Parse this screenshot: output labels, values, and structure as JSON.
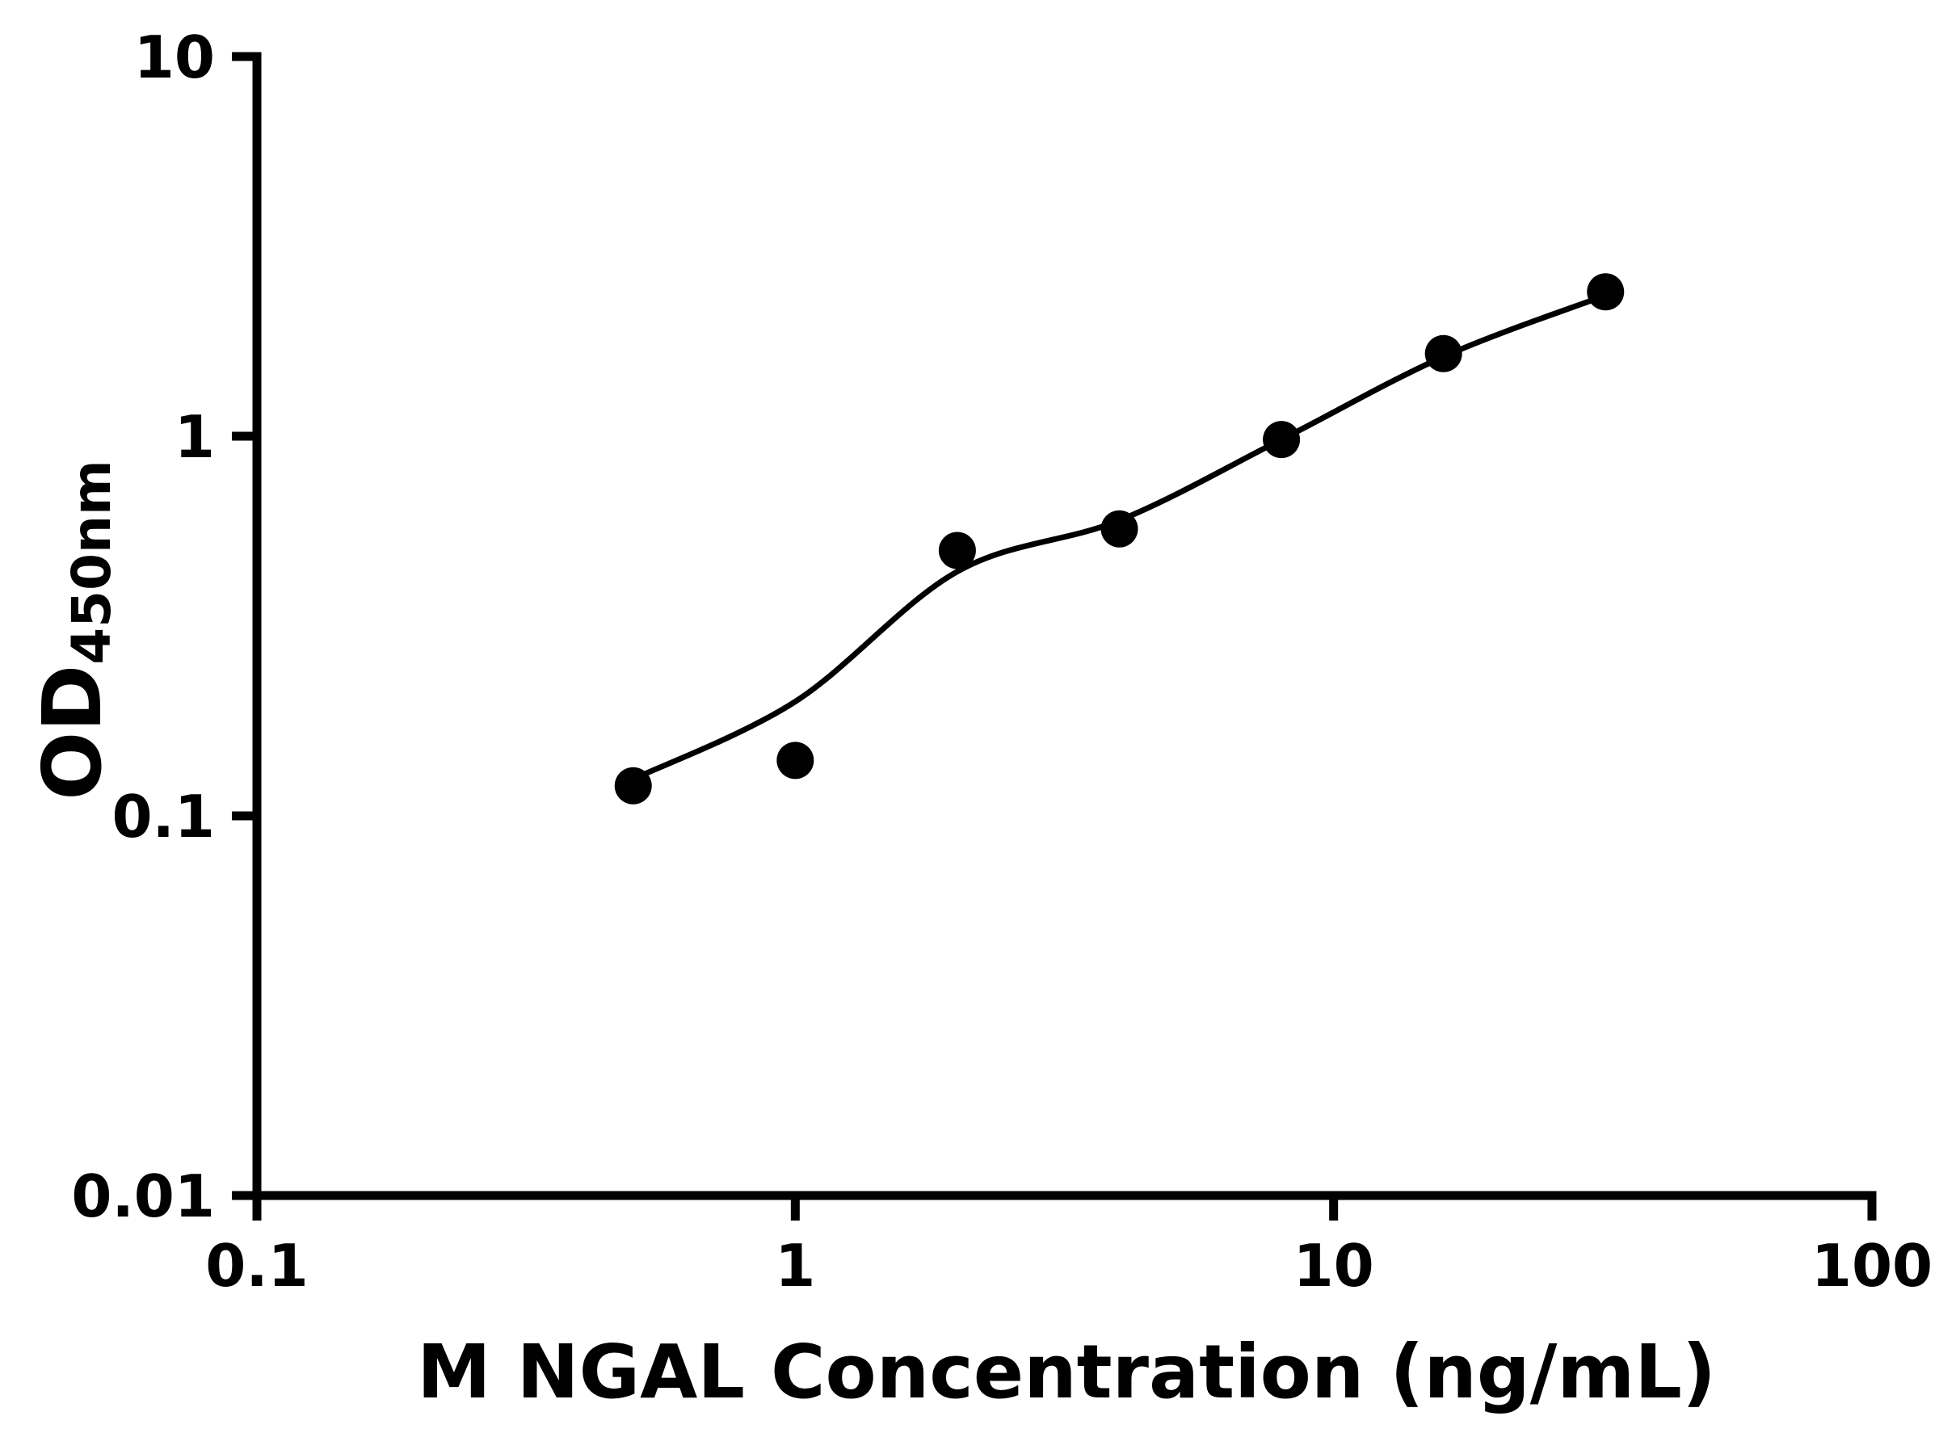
{
  "chart_data": {
    "type": "scatter",
    "title": "",
    "xlabel": "M NGAL Concentration (ng/mL)",
    "ylabel_main": "OD",
    "ylabel_sub": "450nm",
    "xscale": "log",
    "yscale": "log",
    "xlim": [
      0.1,
      100
    ],
    "ylim": [
      0.01,
      10
    ],
    "grid": false,
    "legend": "none",
    "x": [
      0.5,
      1,
      2,
      4,
      8,
      16,
      32
    ],
    "y": [
      0.12,
      0.14,
      0.5,
      0.57,
      0.98,
      1.65,
      2.4
    ],
    "fit_curve": {
      "x": [
        0.5,
        1,
        2,
        4,
        8,
        16,
        32
      ],
      "y": [
        0.125,
        0.2,
        0.44,
        0.6,
        0.98,
        1.62,
        2.35
      ]
    },
    "xticks": {
      "values": [
        0.1,
        1,
        10,
        100
      ],
      "labels": [
        "0.1",
        "1",
        "10",
        "100"
      ]
    },
    "yticks": {
      "values": [
        0.01,
        0.1,
        1,
        10
      ],
      "labels": [
        "0.01",
        "0.1",
        "1",
        "10"
      ]
    },
    "marker": {
      "shape": "circle",
      "color": "#000000",
      "radius": 23
    },
    "line_color": "#000000",
    "line_width": 7,
    "axis_color": "#000000",
    "axis_width": 11,
    "tick_length": 31,
    "tick_label_size": 72,
    "background": "#ffffff"
  }
}
